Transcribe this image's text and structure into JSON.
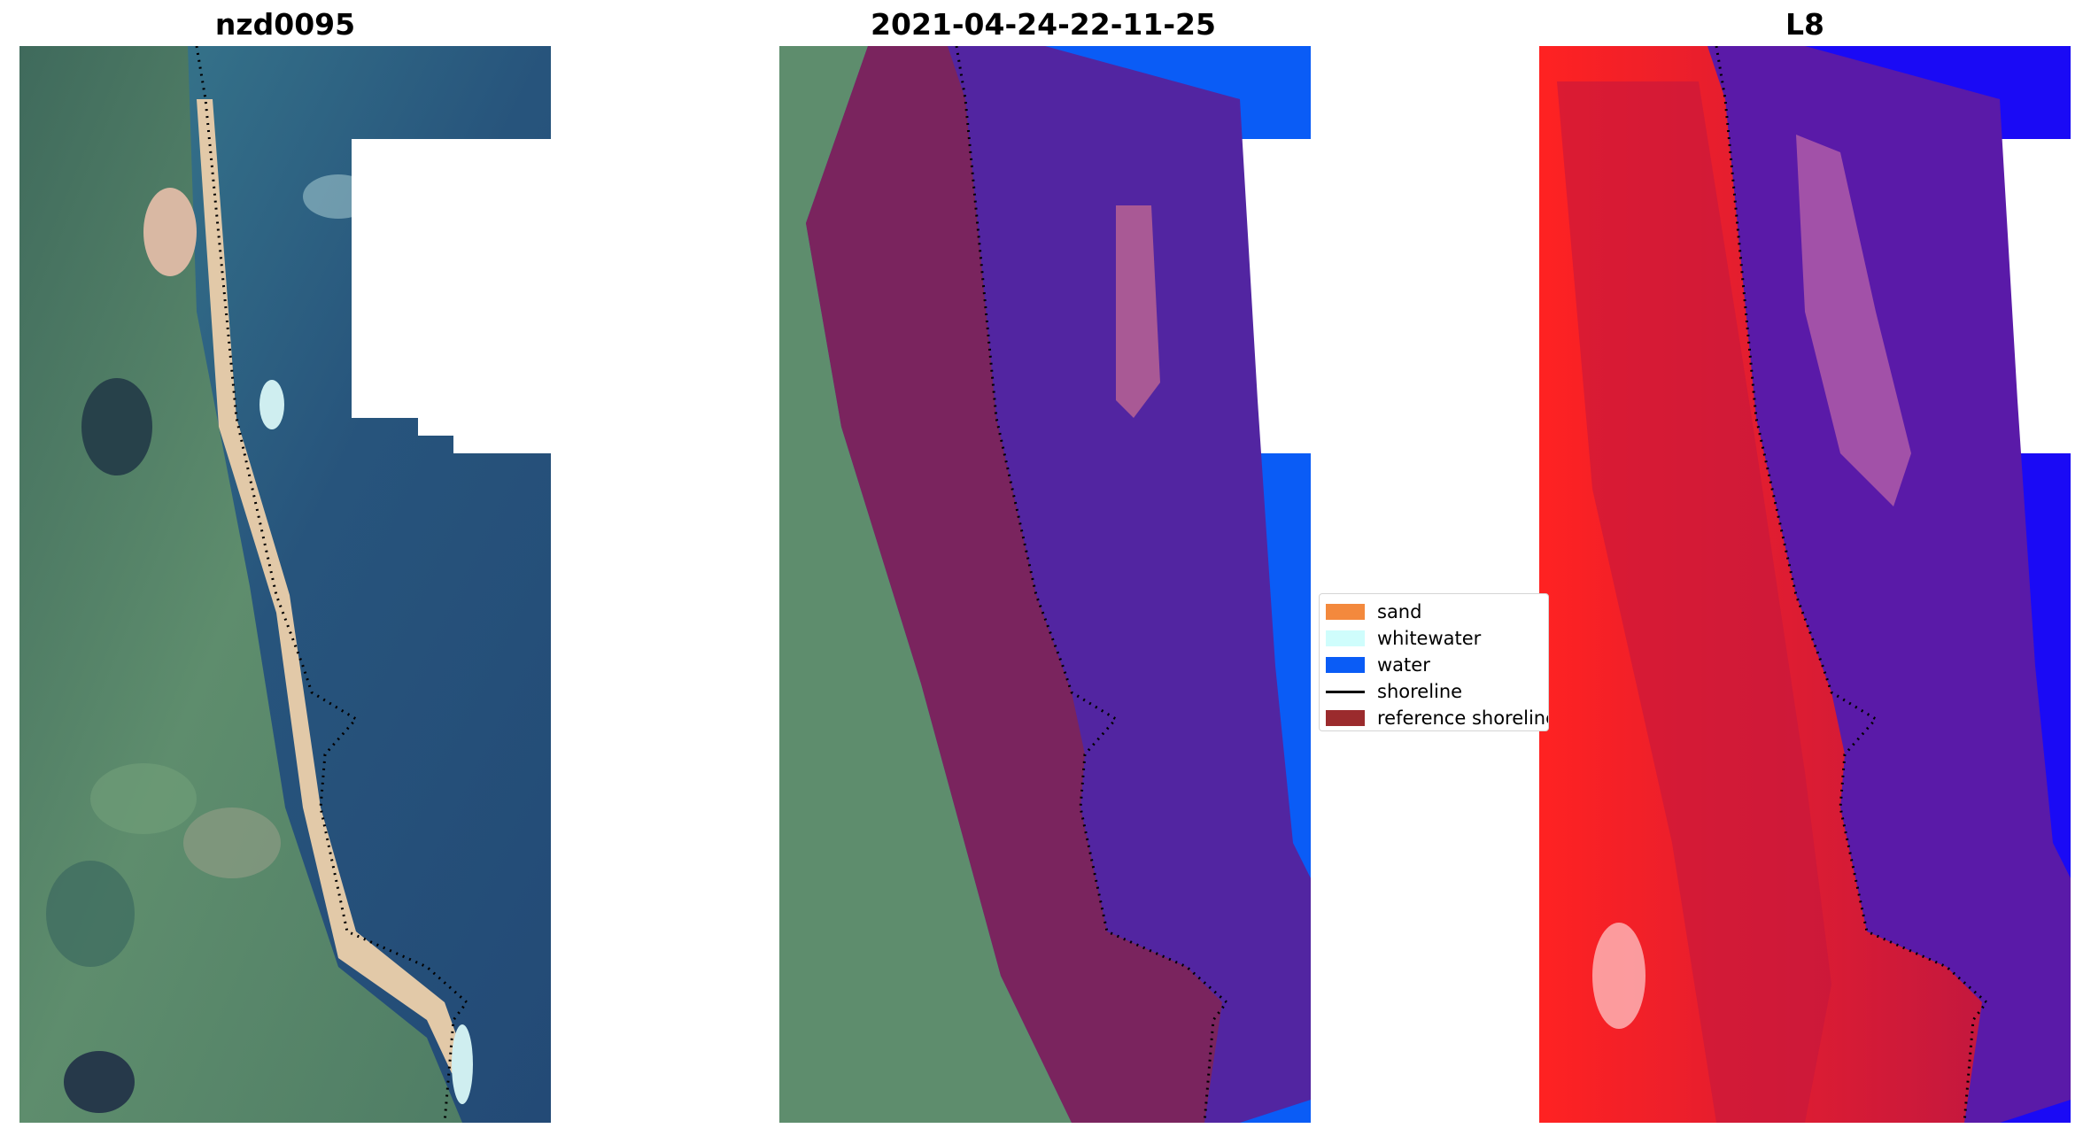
{
  "panels": [
    {
      "title": "nzd0095",
      "content": "true-color satellite image"
    },
    {
      "title": "2021-04-24-22-11-25",
      "content": "classified image overlay"
    },
    {
      "title": "L8",
      "content": "water index image"
    }
  ],
  "legend": {
    "items": [
      {
        "label": "sand",
        "color": "#f3893d",
        "kind": "patch"
      },
      {
        "label": "whitewater",
        "color": "#cffdfc",
        "kind": "patch"
      },
      {
        "label": "water",
        "color": "#0a5cf6",
        "kind": "patch"
      },
      {
        "label": "shoreline",
        "color": "#000000",
        "kind": "line"
      },
      {
        "label": "reference shoreline",
        "color": "#9b2b2d",
        "kind": "patch"
      }
    ]
  }
}
